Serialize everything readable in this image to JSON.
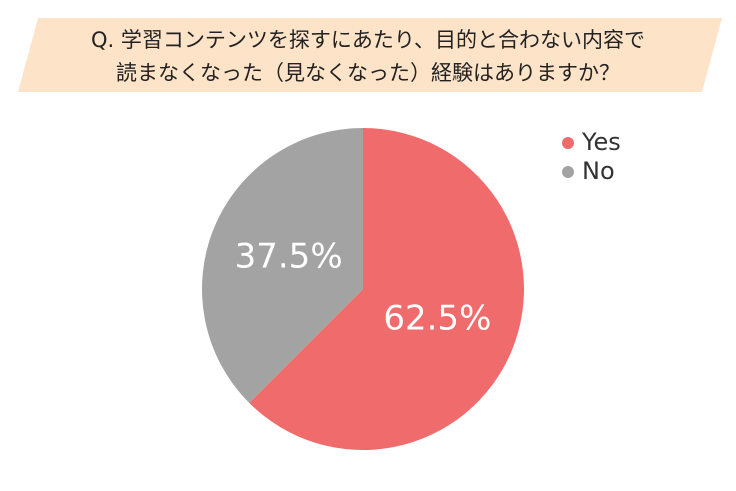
{
  "chart_data": {
    "type": "pie",
    "title": [
      "Q. 学習コンテンツを探すにあたり、目的と合わない内容で",
      "読まなくなった（見なくなった）経験はありますか？"
    ],
    "categories": [
      "Yes",
      "No"
    ],
    "values": [
      62.5,
      37.5
    ],
    "value_labels": [
      "62.5%",
      "37.5%"
    ],
    "colors": [
      "#f06b6b",
      "#a3a3a3"
    ]
  }
}
